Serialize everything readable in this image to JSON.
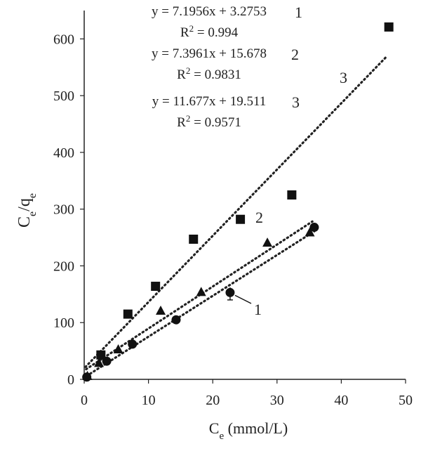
{
  "chart_data": {
    "type": "scatter",
    "title": "",
    "xlabel": {
      "main": "C",
      "sub": "e",
      "unit": " (mmol/L)"
    },
    "ylabel": {
      "a": "C",
      "a_sub": "e",
      "slash": "/",
      "b": "q",
      "b_sub": "e"
    },
    "xlim": [
      0,
      50
    ],
    "ylim": [
      0,
      650
    ],
    "xticks": [
      0,
      10,
      20,
      30,
      40,
      50
    ],
    "xtick_labels": [
      "0",
      "10",
      "20",
      "30",
      "40",
      "50"
    ],
    "yticks": [
      0,
      100,
      200,
      300,
      400,
      500,
      600
    ],
    "ytick_labels": [
      "0",
      "100",
      "200",
      "300",
      "400",
      "500",
      "600"
    ],
    "grid": false,
    "series": [
      {
        "marker": "circle",
        "label": "1",
        "x": [
          0.4,
          3.5,
          7.5,
          14.3,
          22.7,
          35.8
        ],
        "y": [
          4,
          32,
          62,
          105,
          153,
          268
        ],
        "trend": {
          "slope": 7.1956,
          "intercept": 3.2753,
          "x0": 0.4,
          "x1": 35.8
        },
        "error_bar": {
          "x": 22.7,
          "low": 140,
          "high": 162
        }
      },
      {
        "marker": "triangle",
        "label": "2",
        "x": [
          0.5,
          2.3,
          5.3,
          11.9,
          18.2,
          28.5,
          35.1
        ],
        "y": [
          5,
          28,
          52,
          120,
          153,
          240,
          258
        ],
        "trend": {
          "slope": 7.3961,
          "intercept": 15.678,
          "x0": 0.3,
          "x1": 35.5
        }
      },
      {
        "marker": "square",
        "label": "3",
        "x": [
          2.6,
          6.8,
          11.1,
          17.0,
          24.3,
          32.3,
          47.4
        ],
        "y": [
          43,
          115,
          164,
          247,
          282,
          325,
          621
        ],
        "trend": {
          "slope": 11.677,
          "intercept": 19.511,
          "x0": 0.2,
          "x1": 47.0
        }
      }
    ],
    "equations": [
      {
        "eq": "y = 7.1956x + 3.2753",
        "r2_base": "R",
        "r2_exp": "2",
        "r2_value": " = 0.994",
        "num": "1"
      },
      {
        "eq": "y = 7.3961x + 15.678",
        "r2_base": "R",
        "r2_exp": "2",
        "r2_value": " = 0.9831",
        "num": "2"
      },
      {
        "eq": "y = 11.677x + 19.511",
        "r2_base": "R",
        "r2_exp": "2",
        "r2_value": " = 0.9571",
        "num": "3"
      }
    ],
    "colors": {
      "marker": "#111111",
      "trend": "#222222",
      "axis": "#222222"
    }
  }
}
